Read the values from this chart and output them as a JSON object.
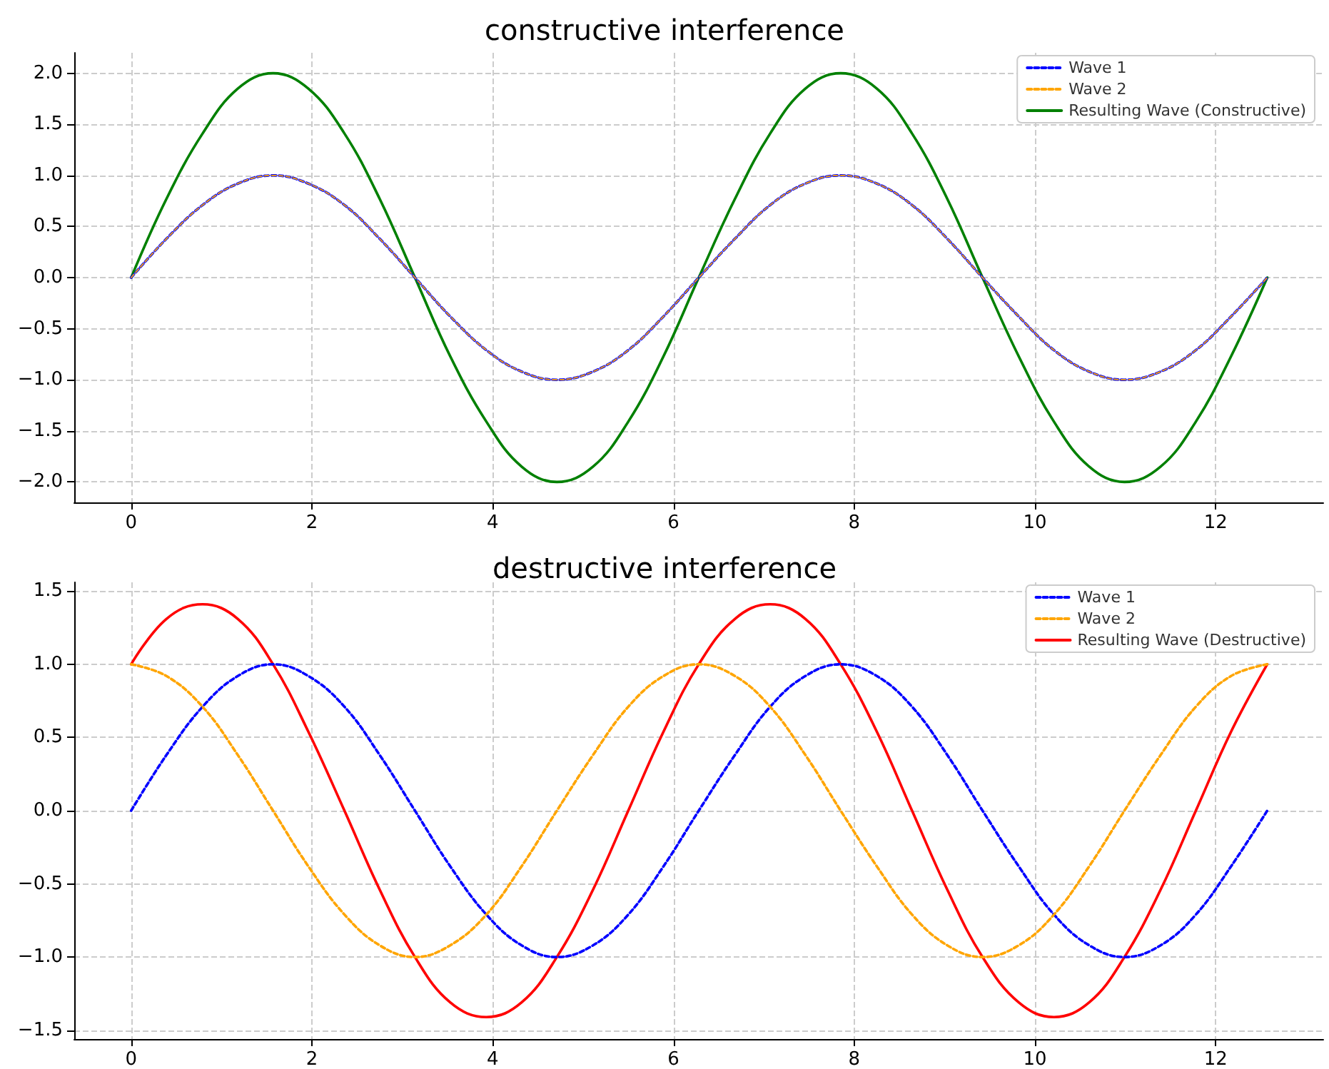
{
  "chart_data": [
    {
      "type": "line",
      "title": "constructive interference",
      "x": [
        0,
        0.39,
        0.79,
        1.18,
        1.57,
        1.96,
        2.36,
        2.75,
        3.14,
        3.53,
        3.93,
        4.32,
        4.71,
        5.11,
        5.5,
        5.89,
        6.28,
        6.68,
        7.07,
        7.46,
        7.85,
        8.25,
        8.64,
        9.03,
        9.42,
        9.82,
        10.21,
        10.6,
        10.99,
        11.39,
        11.78,
        12.17,
        12.57
      ],
      "series": [
        {
          "name": "Wave 1",
          "color": "#0000ff",
          "line_style": "dashed",
          "values": [
            0,
            0.38,
            0.71,
            0.92,
            1,
            0.92,
            0.71,
            0.38,
            0,
            -0.38,
            -0.71,
            -0.92,
            -1,
            -0.92,
            -0.71,
            -0.38,
            0,
            0.38,
            0.71,
            0.92,
            1,
            0.92,
            0.71,
            0.38,
            0,
            -0.38,
            -0.71,
            -0.92,
            -1,
            -0.92,
            -0.71,
            -0.38,
            0
          ]
        },
        {
          "name": "Wave 2",
          "color": "#ffa500",
          "line_style": "dashed",
          "values": [
            0,
            0.38,
            0.71,
            0.92,
            1,
            0.92,
            0.71,
            0.38,
            0,
            -0.38,
            -0.71,
            -0.92,
            -1,
            -0.92,
            -0.71,
            -0.38,
            0,
            0.38,
            0.71,
            0.92,
            1,
            0.92,
            0.71,
            0.38,
            0,
            -0.38,
            -0.71,
            -0.92,
            -1,
            -0.92,
            -0.71,
            -0.38,
            0
          ]
        },
        {
          "name": "Resulting Wave (Constructive)",
          "color": "#008000",
          "line_style": "solid",
          "values": [
            0,
            0.77,
            1.41,
            1.85,
            2,
            1.85,
            1.41,
            0.77,
            0,
            -0.77,
            -1.41,
            -1.85,
            -2,
            -1.85,
            -1.41,
            -0.77,
            0,
            0.77,
            1.41,
            1.85,
            2,
            1.85,
            1.41,
            0.77,
            0,
            -0.77,
            -1.41,
            -1.85,
            -2,
            -1.85,
            -1.41,
            -0.77,
            0
          ]
        }
      ],
      "xlim": [
        -0.63,
        13.19
      ],
      "xticks": [
        0,
        2,
        4,
        6,
        8,
        10,
        12
      ],
      "ylim": [
        -2.2,
        2.2
      ],
      "yticks": [
        {
          "value": -2,
          "label": "−2.0"
        },
        -1.5,
        {
          "value": -1,
          "label": "−1.0"
        },
        -0.5,
        {
          "value": 0,
          "label": "0.0"
        },
        0.5,
        {
          "value": 1,
          "label": "1.0"
        },
        1.5,
        {
          "value": 2,
          "label": "2.0"
        }
      ],
      "grid": true,
      "legend": "top right",
      "marker": "none"
    },
    {
      "type": "line",
      "title": "destructive interference",
      "x": [
        0,
        0.39,
        0.79,
        1.18,
        1.57,
        1.96,
        2.36,
        2.75,
        3.14,
        3.53,
        3.93,
        4.32,
        4.71,
        5.11,
        5.5,
        5.89,
        6.28,
        6.68,
        7.07,
        7.46,
        7.85,
        8.25,
        8.64,
        9.03,
        9.42,
        9.82,
        10.21,
        10.6,
        10.99,
        11.39,
        11.78,
        12.17,
        12.57
      ],
      "series": [
        {
          "name": "Wave 1",
          "color": "#0000ff",
          "line_style": "dashed",
          "values": [
            0,
            0.38,
            0.71,
            0.92,
            1,
            0.92,
            0.71,
            0.38,
            0,
            -0.38,
            -0.71,
            -0.92,
            -1,
            -0.92,
            -0.71,
            -0.38,
            0,
            0.38,
            0.71,
            0.92,
            1,
            0.92,
            0.71,
            0.38,
            0,
            -0.38,
            -0.71,
            -0.92,
            -1,
            -0.92,
            -0.71,
            -0.38,
            0
          ]
        },
        {
          "name": "Wave 2",
          "color": "#ffa500",
          "line_style": "dashed",
          "values": [
            1,
            0.92,
            0.71,
            0.38,
            0,
            -0.38,
            -0.71,
            -0.92,
            -1,
            -0.92,
            -0.71,
            -0.38,
            0,
            0.38,
            0.71,
            0.92,
            1,
            0.92,
            0.71,
            0.38,
            0,
            -0.38,
            -0.71,
            -0.92,
            -1,
            -0.92,
            -0.71,
            -0.38,
            0,
            0.38,
            0.71,
            0.92,
            1
          ]
        },
        {
          "name": "Resulting Wave (Destructive)",
          "color": "#ff0000",
          "line_style": "solid",
          "values": [
            1,
            1.31,
            1.41,
            1.31,
            1,
            0.54,
            0,
            -0.54,
            -1,
            -1.31,
            -1.41,
            -1.31,
            -1,
            -0.54,
            0,
            0.54,
            1,
            1.31,
            1.41,
            1.31,
            1,
            0.54,
            0,
            -0.54,
            -1,
            -1.31,
            -1.41,
            -1.31,
            -1,
            -0.54,
            0,
            0.54,
            1
          ]
        }
      ],
      "xlim": [
        -0.63,
        13.19
      ],
      "xticks": [
        0,
        2,
        4,
        6,
        8,
        10,
        12
      ],
      "ylim": [
        -1.56,
        1.56
      ],
      "yticks": [
        -1.5,
        {
          "value": -1,
          "label": "−1.0"
        },
        -0.5,
        {
          "value": 0,
          "label": "0.0"
        },
        0.5,
        {
          "value": 1,
          "label": "1.0"
        },
        1.5
      ],
      "grid": true,
      "legend": "top right",
      "marker": "none"
    }
  ]
}
